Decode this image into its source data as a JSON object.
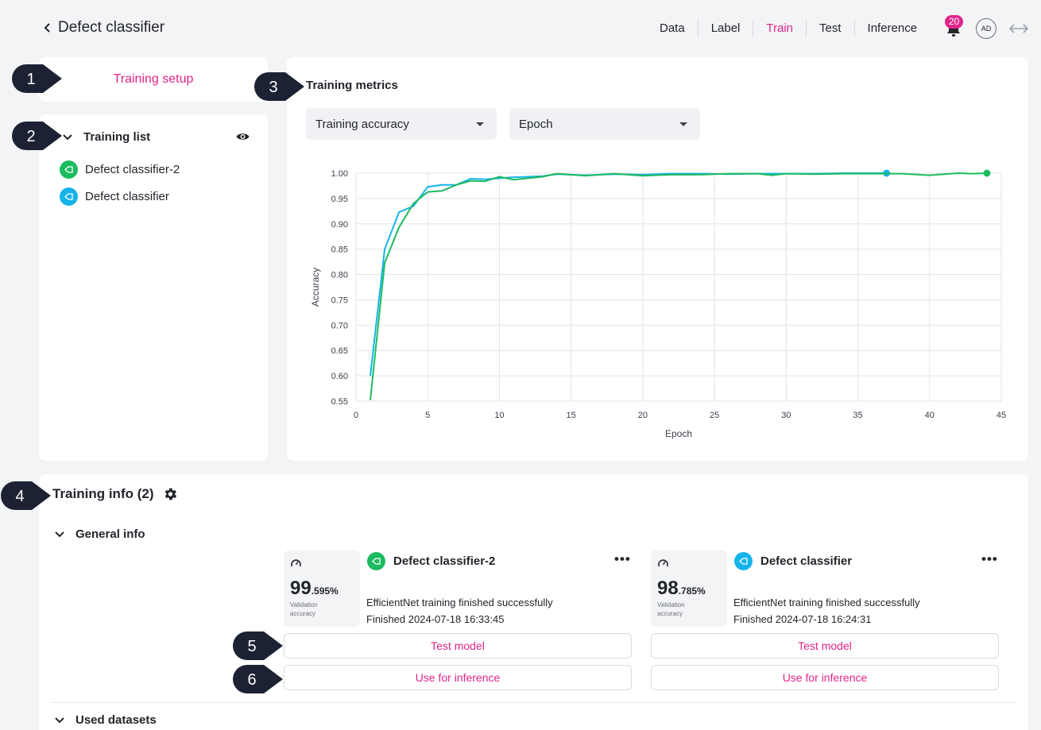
{
  "header": {
    "title": "Defect classifier",
    "nav": [
      "Data",
      "Label",
      "Train",
      "Test",
      "Inference"
    ],
    "active_tab": "Train",
    "notification_count": "20",
    "avatar_initials": "AD"
  },
  "callouts": [
    "1",
    "2",
    "3",
    "4",
    "5",
    "6"
  ],
  "setup": {
    "label": "Training setup"
  },
  "training_list": {
    "title": "Training list",
    "items": [
      {
        "label": "Defect classifier-2",
        "color": "#1dbb5f",
        "icon": "model-icon"
      },
      {
        "label": "Defect classifier",
        "color": "#16b3ea",
        "icon": "model-icon"
      }
    ]
  },
  "metrics": {
    "title": "Training metrics",
    "metric_select": "Training accuracy",
    "axis_select": "Epoch"
  },
  "chart_data": {
    "type": "line",
    "xlabel": "Epoch",
    "ylabel": "Accuracy",
    "xlim": [
      0,
      45
    ],
    "ylim": [
      0.55,
      1.0
    ],
    "xticks": [
      0,
      5,
      10,
      15,
      20,
      25,
      30,
      35,
      40,
      45
    ],
    "yticks": [
      0.55,
      0.6,
      0.65,
      0.7,
      0.75,
      0.8,
      0.85,
      0.9,
      0.95,
      1.0
    ],
    "grid": true,
    "series": [
      {
        "name": "Defect classifier",
        "color": "#16b3ea",
        "x": [
          1,
          2,
          3,
          4,
          5,
          6,
          7,
          8,
          9,
          10,
          11,
          12,
          13,
          14,
          16,
          18,
          20,
          22,
          24,
          26,
          28,
          30,
          32,
          34,
          36,
          37
        ],
        "y": [
          0.6,
          0.85,
          0.923,
          0.935,
          0.973,
          0.977,
          0.977,
          0.989,
          0.988,
          0.99,
          0.992,
          0.993,
          0.994,
          0.998,
          0.996,
          0.998,
          0.997,
          0.999,
          0.999,
          0.998,
          0.999,
          0.999,
          0.999,
          1.0,
          1.0,
          1.0
        ]
      },
      {
        "name": "Defect classifier-2",
        "color": "#1dbb5f",
        "x": [
          1,
          2,
          3,
          4,
          5,
          6,
          7,
          8,
          9,
          10,
          11,
          12,
          13,
          14,
          16,
          18,
          20,
          22,
          24,
          26,
          28,
          29,
          30,
          32,
          34,
          36,
          38,
          40,
          42,
          43,
          44
        ],
        "y": [
          0.552,
          0.823,
          0.893,
          0.94,
          0.963,
          0.965,
          0.977,
          0.985,
          0.984,
          0.993,
          0.987,
          0.99,
          0.993,
          0.999,
          0.995,
          0.999,
          0.995,
          0.997,
          0.997,
          0.999,
          0.999,
          0.996,
          0.999,
          0.998,
          0.999,
          0.999,
          0.999,
          0.996,
          1.0,
          0.999,
          1.0
        ]
      }
    ]
  },
  "training_info": {
    "title": "Training info (2)",
    "general_label": "General info",
    "datasets_label": "Used datasets",
    "cards": [
      {
        "name": "Defect classifier-2",
        "color": "#1dbb5f",
        "acc_int": "99",
        "acc_dec": ".595%",
        "acc_caption": "Validation accuracy",
        "status": "EfficientNet training finished successfully",
        "finished": "Finished 2024-07-18 16:33:45",
        "test_btn": "Test model",
        "infer_btn": "Use for inference"
      },
      {
        "name": "Defect classifier",
        "color": "#16b3ea",
        "acc_int": "98",
        "acc_dec": ".785%",
        "acc_caption": "Validation accuracy",
        "status": "EfficientNet training finished successfully",
        "finished": "Finished 2024-07-18 16:24:31",
        "test_btn": "Test model",
        "infer_btn": "Use for inference"
      }
    ]
  }
}
